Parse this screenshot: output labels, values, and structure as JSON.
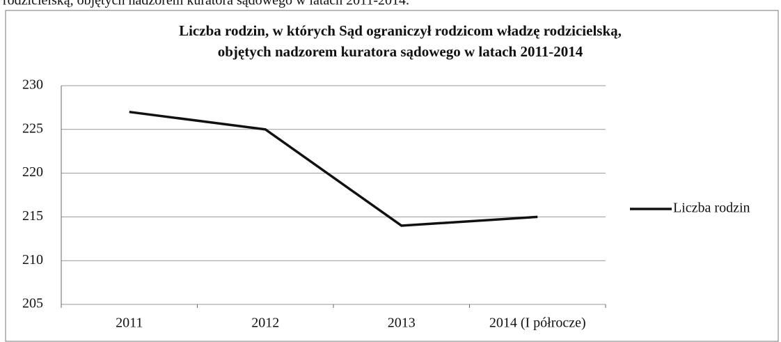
{
  "caption": "rodzicielską, objętych nadzorem kuratora sądowego w latach 2011-2014.",
  "chart_data": {
    "type": "line",
    "title": [
      "Liczba rodzin, w których Sąd ograniczył rodzicom władzę rodzicielską,",
      "objętych nadzorem kuratora sądowego w latach 2011-2014"
    ],
    "categories": [
      "2011",
      "2012",
      "2013",
      "2014 (I półrocze)"
    ],
    "series": [
      {
        "name": "Liczba rodzin",
        "color": "#111111",
        "values": [
          227,
          225,
          214,
          215
        ]
      }
    ],
    "ylim": [
      205,
      230
    ],
    "yticks": [
      205,
      210,
      215,
      220,
      225,
      230
    ],
    "grid": true,
    "legend": "right"
  }
}
